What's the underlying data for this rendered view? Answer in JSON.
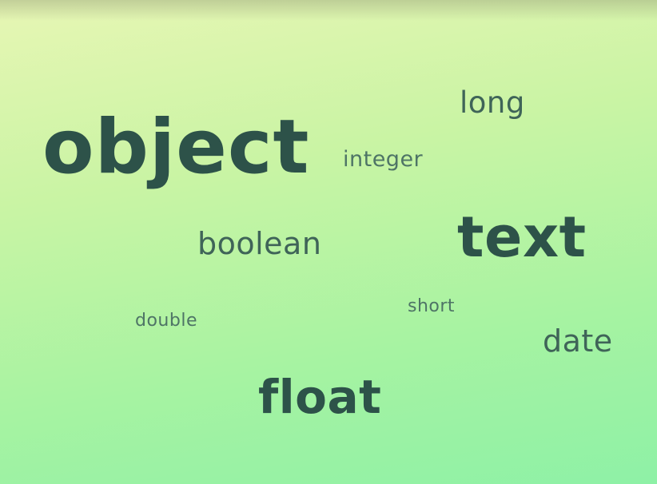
{
  "word_cloud": {
    "words": {
      "object": "object",
      "long": "long",
      "integer": "integer",
      "boolean": "boolean",
      "text": "text",
      "short": "short",
      "double": "double",
      "date": "date",
      "float": "float"
    }
  },
  "colors": {
    "background_top": "#e7f6b4",
    "background_bottom": "#8ef1a6",
    "word_dark": "#2d5249",
    "word_medium": "#3f6458",
    "word_light": "#4e7466"
  }
}
